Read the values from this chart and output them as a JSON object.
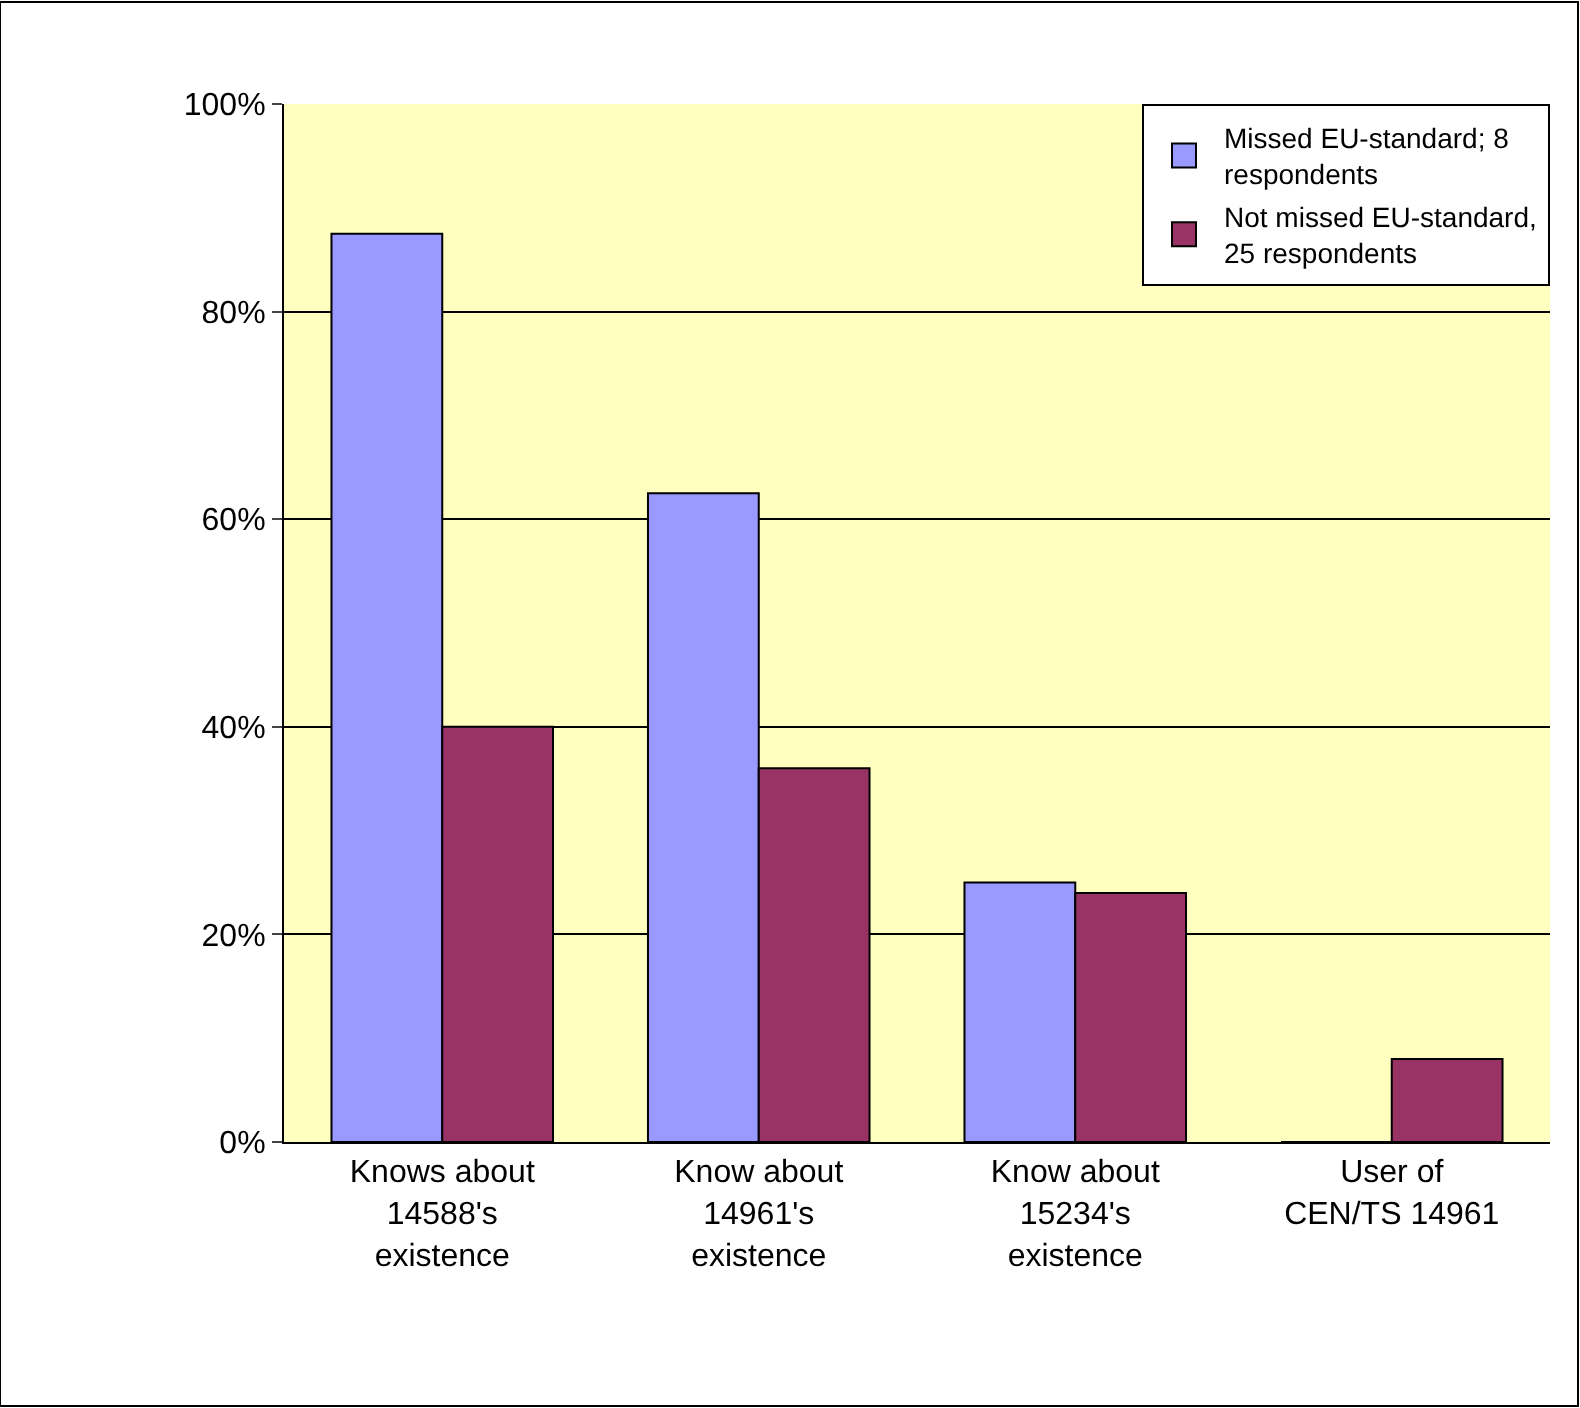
{
  "chart_data": {
    "type": "bar",
    "categories": [
      "Knows about\n14588's\nexistence",
      "Know about\n14961's\nexistence",
      "Know about\n15234's\nexistence",
      "User of\nCEN/TS 14961"
    ],
    "series": [
      {
        "name": "Missed EU-standard; 8\nrespondents",
        "color": "#9999ff",
        "values": [
          87.5,
          62.5,
          25,
          0
        ]
      },
      {
        "name": "Not missed EU-standard,\n25 respondents",
        "color": "#993366",
        "values": [
          40,
          36,
          24,
          8
        ]
      }
    ],
    "ylim": [
      0,
      100
    ],
    "yticks": [
      {
        "value": 0,
        "label": "0%"
      },
      {
        "value": 20,
        "label": "20%"
      },
      {
        "value": 40,
        "label": "40%"
      },
      {
        "value": 60,
        "label": "60%"
      },
      {
        "value": 80,
        "label": "80%"
      },
      {
        "value": 100,
        "label": "100%"
      }
    ],
    "grid": "y",
    "legend": "top right"
  }
}
